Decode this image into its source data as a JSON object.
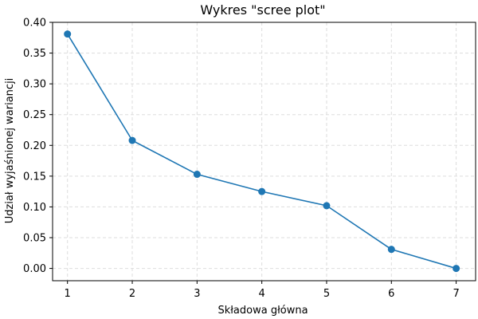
{
  "chart_data": {
    "type": "line",
    "title": "Wykres \"scree plot\"",
    "xlabel": "Składowa główna",
    "ylabel": "Udział wyjaśnionej wariancji",
    "x": [
      1,
      2,
      3,
      4,
      5,
      6,
      7
    ],
    "series": [
      {
        "values": [
          0.381,
          0.208,
          0.153,
          0.125,
          0.102,
          0.031,
          0.0
        ],
        "color": "#1f77b4",
        "marker": "circle"
      }
    ],
    "xlim": [
      0.77,
      7.3
    ],
    "ylim": [
      -0.02,
      0.4
    ],
    "xticks": [
      1,
      2,
      3,
      4,
      5,
      6,
      7
    ],
    "yticks": [
      0.0,
      0.05,
      0.1,
      0.15,
      0.2,
      0.25,
      0.3,
      0.35,
      0.4
    ],
    "yticklabels": [
      "0.00",
      "0.05",
      "0.10",
      "0.15",
      "0.20",
      "0.25",
      "0.30",
      "0.35",
      "0.40"
    ],
    "grid": true,
    "grid_style": "dashed",
    "legend": "none"
  }
}
